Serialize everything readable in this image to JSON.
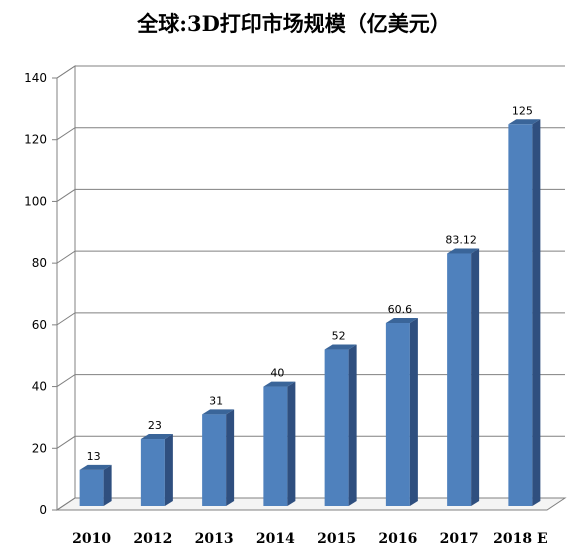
{
  "chart_data": {
    "type": "bar",
    "title": "全球:3D打印市场规模（亿美元）",
    "xlabel": "",
    "ylabel": "",
    "categories": [
      "2010",
      "2012",
      "2013",
      "2014",
      "2015",
      "2016",
      "2017",
      "2018 E"
    ],
    "values": [
      13,
      23,
      31,
      40,
      52,
      60.6,
      83.12,
      125
    ],
    "value_labels": [
      "13",
      "23",
      "31",
      "40",
      "52",
      "60.6",
      "83.12",
      "125"
    ],
    "ylim": [
      0,
      140
    ],
    "yticks": [
      0,
      20,
      40,
      60,
      80,
      100,
      120,
      140
    ],
    "grid": true,
    "legend": "none",
    "colors": {
      "bar_front": "#4f81bd",
      "bar_side": "#2f4f7f",
      "bar_top": "#3a6599",
      "grid": "#808080"
    }
  }
}
